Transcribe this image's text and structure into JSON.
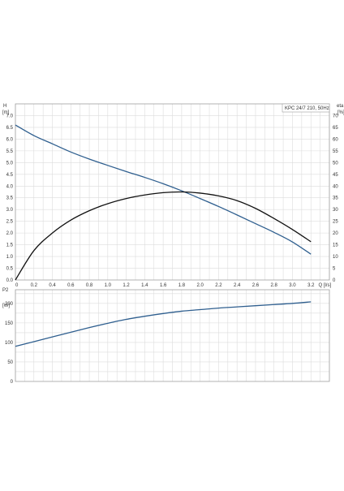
{
  "chart_data": [
    {
      "type": "line",
      "title": "KPC 24/7 210, 50Hz",
      "xlabel": "Q [l/s]",
      "ylabel_left_top": "H",
      "ylabel_left_unit": "[m]",
      "ylabel_right_top": "eta",
      "ylabel_right_unit": "[%]",
      "xlim": [
        0,
        3.4
      ],
      "ylim": [
        0,
        7.5
      ],
      "ylim_right": [
        0,
        75
      ],
      "grid": true,
      "x_ticks": [
        "0",
        "0.2",
        "0.4",
        "0.6",
        "0.8",
        "1.0",
        "1.2",
        "1.4",
        "1.6",
        "1.8",
        "2.0",
        "2.2",
        "2.4",
        "2.6",
        "2.8",
        "3.0",
        "3.2"
      ],
      "y_ticks": [
        "0.0",
        "0.5",
        "1.0",
        "1.5",
        "2.0",
        "2.5",
        "3.0",
        "3.5",
        "4.0",
        "4.5",
        "5.0",
        "5.5",
        "6.0",
        "6.5",
        "7.0"
      ],
      "y_ticks_right": [
        "0",
        "5",
        "10",
        "15",
        "20",
        "25",
        "30",
        "35",
        "40",
        "45",
        "50",
        "55",
        "60",
        "65",
        "70"
      ],
      "series": [
        {
          "axis": "left",
          "color": "#2f5f8f",
          "x": [
            0,
            0.2,
            0.4,
            0.6,
            0.8,
            1.0,
            1.2,
            1.4,
            1.6,
            1.8,
            2.0,
            2.2,
            2.4,
            2.6,
            2.8,
            3.0,
            3.2
          ],
          "y": [
            6.6,
            6.15,
            5.8,
            5.45,
            5.15,
            4.88,
            4.62,
            4.37,
            4.1,
            3.8,
            3.47,
            3.13,
            2.77,
            2.4,
            2.03,
            1.62,
            1.1
          ]
        },
        {
          "axis": "right",
          "color": "#111111",
          "x": [
            0,
            0.2,
            0.4,
            0.6,
            0.8,
            1.0,
            1.2,
            1.4,
            1.6,
            1.8,
            2.0,
            2.2,
            2.4,
            2.6,
            2.8,
            3.0,
            3.2
          ],
          "y": [
            0,
            12.5,
            20,
            25.5,
            29.5,
            32.5,
            34.7,
            36.2,
            37.2,
            37.5,
            37.0,
            35.8,
            33.8,
            30.5,
            26.2,
            21.5,
            16.3
          ]
        }
      ]
    },
    {
      "type": "line",
      "ylabel_top": "P2",
      "ylabel_unit": "[W]",
      "xlim": [
        0,
        3.4
      ],
      "ylim": [
        0,
        235
      ],
      "grid": true,
      "y_ticks": [
        "0",
        "50",
        "100",
        "150",
        "200"
      ],
      "series": [
        {
          "color": "#2f5f8f",
          "x": [
            0,
            0.2,
            0.4,
            0.6,
            0.8,
            1.0,
            1.2,
            1.4,
            1.6,
            1.8,
            2.0,
            2.2,
            2.4,
            2.6,
            2.8,
            3.0,
            3.2
          ],
          "y": [
            90,
            102,
            114,
            126,
            138,
            149,
            159,
            167,
            174,
            180,
            184,
            188,
            191,
            194,
            197,
            200,
            204
          ]
        }
      ]
    }
  ]
}
